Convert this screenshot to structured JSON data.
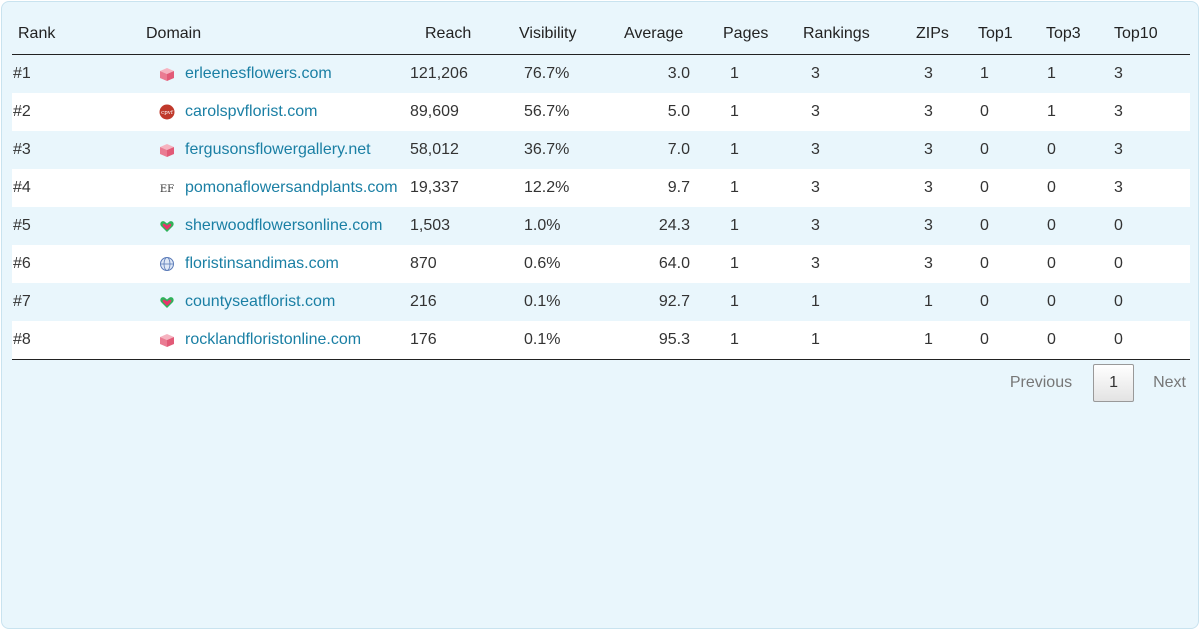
{
  "headers": {
    "rank": "Rank",
    "domain": "Domain",
    "reach": "Reach",
    "visibility": "Visibility",
    "average": "Average",
    "pages": "Pages",
    "rankings": "Rankings",
    "zips": "ZIPs",
    "top1": "Top1",
    "top3": "Top3",
    "top10": "Top10"
  },
  "rows": [
    {
      "rank": "#1",
      "icon": "box-icon",
      "domain": "erleenesflowers.com",
      "reach": "121,206",
      "visibility": "76.7%",
      "average": "3.0",
      "pages": "1",
      "rankings": "3",
      "zips": "3",
      "top1": "1",
      "top3": "1",
      "top10": "3"
    },
    {
      "rank": "#2",
      "icon": "cpvf-badge-icon",
      "domain": "carolspvflorist.com",
      "reach": "89,609",
      "visibility": "56.7%",
      "average": "5.0",
      "pages": "1",
      "rankings": "3",
      "zips": "3",
      "top1": "0",
      "top3": "1",
      "top10": "3"
    },
    {
      "rank": "#3",
      "icon": "box-icon",
      "domain": "fergusonsflowergallery.net",
      "reach": "58,012",
      "visibility": "36.7%",
      "average": "7.0",
      "pages": "1",
      "rankings": "3",
      "zips": "3",
      "top1": "0",
      "top3": "0",
      "top10": "3"
    },
    {
      "rank": "#4",
      "icon": "ef-letters-icon",
      "domain": "pomonaflowersandplants.com",
      "reach": "19,337",
      "visibility": "12.2%",
      "average": "9.7",
      "pages": "1",
      "rankings": "3",
      "zips": "3",
      "top1": "0",
      "top3": "0",
      "top10": "3"
    },
    {
      "rank": "#5",
      "icon": "heart-icon",
      "domain": "sherwoodflowersonline.com",
      "reach": "1,503",
      "visibility": "1.0%",
      "average": "24.3",
      "pages": "1",
      "rankings": "3",
      "zips": "3",
      "top1": "0",
      "top3": "0",
      "top10": "0"
    },
    {
      "rank": "#6",
      "icon": "globe-icon",
      "domain": "floristinsandimas.com",
      "reach": "870",
      "visibility": "0.6%",
      "average": "64.0",
      "pages": "1",
      "rankings": "3",
      "zips": "3",
      "top1": "0",
      "top3": "0",
      "top10": "0"
    },
    {
      "rank": "#7",
      "icon": "heart-icon",
      "domain": "countyseatflorist.com",
      "reach": "216",
      "visibility": "0.1%",
      "average": "92.7",
      "pages": "1",
      "rankings": "1",
      "zips": "1",
      "top1": "0",
      "top3": "0",
      "top10": "0"
    },
    {
      "rank": "#8",
      "icon": "box-icon",
      "domain": "rocklandfloristonline.com",
      "reach": "176",
      "visibility": "0.1%",
      "average": "95.3",
      "pages": "1",
      "rankings": "1",
      "zips": "1",
      "top1": "0",
      "top3": "0",
      "top10": "0"
    }
  ],
  "pagination": {
    "previous": "Previous",
    "current": "1",
    "next": "Next"
  },
  "colors": {
    "link": "#1a7fa4",
    "panel_bg": "#e9f6fc",
    "row_alt": "#ffffff"
  }
}
